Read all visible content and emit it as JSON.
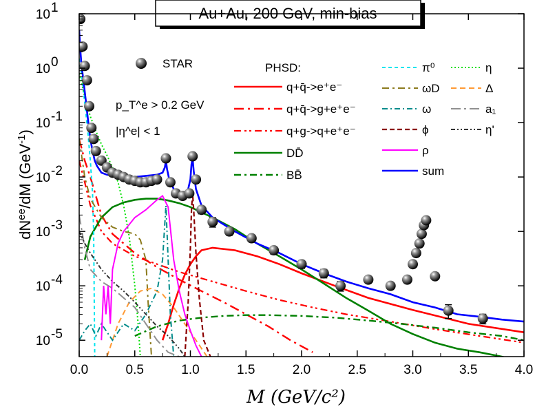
{
  "chart_data": {
    "type": "line",
    "title": "Au+Au, 200 GeV, min-bias",
    "xlabel": "M (GeV/c²)",
    "ylabel": "dN^ee/dM (GeV^-1)",
    "xlim": [
      0.0,
      4.0
    ],
    "ylim": [
      5e-06,
      10
    ],
    "yscale": "log",
    "x_ticks": [
      "0.0",
      "0.5",
      "1.0",
      "1.5",
      "2.0",
      "2.5",
      "3.0",
      "3.5",
      "4.0"
    ],
    "y_ticks": [
      "10^-5",
      "10^-4",
      "10^-3",
      "10^-2",
      "10^-1",
      "10^0",
      "10^1"
    ],
    "legend_title": "PHSD:",
    "annotations": [
      "p_T^e > 0.2 GeV",
      "|η^e| < 1"
    ],
    "data_series": {
      "name": "STAR",
      "x": [
        0.01,
        0.03,
        0.05,
        0.07,
        0.09,
        0.11,
        0.13,
        0.15,
        0.2,
        0.25,
        0.3,
        0.35,
        0.4,
        0.45,
        0.5,
        0.55,
        0.6,
        0.65,
        0.7,
        0.78,
        0.82,
        0.87,
        0.93,
        0.99,
        1.02,
        1.05,
        1.1,
        1.2,
        1.35,
        1.55,
        1.75,
        2.0,
        2.2,
        2.35,
        2.6,
        2.8,
        2.95,
        3.0,
        3.03,
        3.06,
        3.08,
        3.1,
        3.12,
        3.2,
        3.32,
        3.63
      ],
      "y": [
        8,
        2.5,
        1.1,
        0.6,
        0.2,
        0.08,
        0.05,
        0.03,
        0.02,
        0.015,
        0.012,
        0.011,
        0.01,
        0.009,
        0.0085,
        0.008,
        0.008,
        0.0085,
        0.009,
        0.022,
        0.008,
        0.005,
        0.0045,
        0.005,
        0.024,
        0.009,
        0.0025,
        0.0015,
        0.001,
        0.00075,
        0.00045,
        0.00025,
        0.00017,
        0.0001,
        0.00013,
        0.0001,
        0.00013,
        0.00025,
        0.0004,
        0.0006,
        0.0009,
        0.0013,
        0.0016,
        0.00015,
        3.5e-05,
        2.5e-05
      ],
      "errors": [
        0,
        0,
        0,
        0,
        0,
        0,
        0,
        0,
        0,
        0,
        0,
        0,
        0,
        0,
        0,
        0,
        0,
        0,
        0,
        0,
        0,
        0,
        0,
        0,
        0,
        0,
        0.0004,
        0.0003,
        0.00015,
        0.0001,
        7e-05,
        4e-05,
        3e-05,
        2e-05,
        0,
        0,
        0,
        0,
        0,
        0,
        0,
        0,
        0,
        0,
        1e-05,
        5e-06
      ]
    },
    "series": [
      {
        "name": "q+q̄->e⁺e⁻",
        "color": "#ff0000",
        "dash": "",
        "width": 2.6,
        "x": [
          0.75,
          0.8,
          0.85,
          0.9,
          0.95,
          1.0,
          1.05,
          1.1,
          1.2,
          1.4,
          1.6,
          1.8,
          2.0,
          2.3,
          2.6,
          3.0,
          3.5,
          4.0
        ],
        "y": [
          1e-05,
          2e-05,
          4.5e-05,
          9e-05,
          0.00016,
          0.00025,
          0.00035,
          0.00045,
          0.0005,
          0.00045,
          0.00035,
          0.00025,
          0.00017,
          0.0001,
          6e-05,
          3.6e-05,
          2e-05,
          1.4e-05
        ]
      },
      {
        "name": "q+q̄->g+e⁺e⁻",
        "color": "#ff0000",
        "dash": "14,6,3,6",
        "width": 2.4,
        "x": [
          0.0,
          0.05,
          0.1,
          0.2,
          0.3,
          0.5,
          0.7,
          0.9,
          1.1,
          1.3,
          1.5,
          1.7,
          1.9,
          2.1
        ],
        "y": [
          0.05,
          0.02,
          0.01,
          0.002,
          0.0009,
          0.0004,
          0.00022,
          0.00013,
          8e-05,
          5e-05,
          3e-05,
          1.8e-05,
          1e-05,
          6e-06
        ]
      },
      {
        "name": "q+g->q+e⁺e⁻",
        "color": "#ff0000",
        "dash": "10,5,3,4,3,5",
        "width": 2.2,
        "x": [
          0.0,
          0.05,
          0.1,
          0.2,
          0.3,
          0.5,
          0.7,
          0.9,
          1.2,
          1.5,
          1.8,
          2.1,
          2.4,
          2.8,
          3.2,
          3.6,
          4.0
        ],
        "y": [
          0.02,
          0.008,
          0.003,
          0.001,
          0.0006,
          0.00035,
          0.00025,
          0.00018,
          0.00012,
          8e-05,
          5.5e-05,
          4e-05,
          3e-05,
          2.2e-05,
          1.6e-05,
          1.2e-05,
          9e-06
        ]
      },
      {
        "name": "DD̄",
        "color": "#008000",
        "dash": "",
        "width": 2.6,
        "x": [
          0.05,
          0.1,
          0.2,
          0.3,
          0.4,
          0.5,
          0.6,
          0.7,
          0.8,
          0.9,
          1.0,
          1.2,
          1.4,
          1.6,
          1.8,
          2.0,
          2.2,
          2.4,
          2.6,
          2.8,
          3.0,
          3.2,
          3.4,
          3.6,
          3.8,
          4.0
        ],
        "y": [
          0.0003,
          0.0008,
          0.0018,
          0.0028,
          0.0034,
          0.0038,
          0.004,
          0.004,
          0.0037,
          0.0033,
          0.0028,
          0.0018,
          0.0011,
          0.0006,
          0.00035,
          0.0002,
          0.00011,
          6e-05,
          3.5e-05,
          2e-05,
          1.3e-05,
          9e-06,
          7e-06,
          6e-06,
          5e-06,
          4e-06
        ]
      },
      {
        "name": "BB̄",
        "color": "#008000",
        "dash": "10,5,3,5",
        "width": 2.4,
        "x": [
          0.5,
          0.7,
          0.9,
          1.1,
          1.3,
          1.5,
          1.7,
          2.0,
          2.3,
          2.6,
          2.9,
          3.2,
          3.5,
          3.8,
          4.0
        ],
        "y": [
          1.2e-05,
          1.8e-05,
          2.3e-05,
          2.6e-05,
          2.8e-05,
          2.9e-05,
          2.9e-05,
          2.8e-05,
          2.6e-05,
          2.3e-05,
          2e-05,
          1.7e-05,
          1.4e-05,
          1.2e-05,
          1e-05
        ]
      },
      {
        "name": "π⁰",
        "color": "#00e5ee",
        "dash": "5,4",
        "width": 2,
        "x": [
          0.0,
          0.02,
          0.04,
          0.06,
          0.08,
          0.1,
          0.12,
          0.13,
          0.14
        ],
        "y": [
          1.5,
          0.8,
          0.35,
          0.15,
          0.06,
          0.02,
          0.005,
          0.001,
          5e-06
        ]
      },
      {
        "name": "η",
        "color": "#00e000",
        "dash": "2,3",
        "width": 2,
        "x": [
          0.0,
          0.05,
          0.1,
          0.15,
          0.2,
          0.25,
          0.3,
          0.35,
          0.4,
          0.45,
          0.5,
          0.53,
          0.55
        ],
        "y": [
          0.8,
          0.3,
          0.13,
          0.07,
          0.04,
          0.025,
          0.015,
          0.008,
          0.003,
          0.0008,
          0.0001,
          2e-05,
          5e-06
        ]
      },
      {
        "name": "ωD",
        "color": "#8b7a1c",
        "dash": "10,5,3,5",
        "width": 2,
        "x": [
          0.0,
          0.05,
          0.1,
          0.2,
          0.3,
          0.4,
          0.5,
          0.55,
          0.6,
          0.62,
          0.65
        ],
        "y": [
          0.05,
          0.01,
          0.004,
          0.0018,
          0.0012,
          0.001,
          0.0009,
          0.0007,
          0.0003,
          5e-05,
          5e-06
        ]
      },
      {
        "name": "Δ",
        "color": "#ff9933",
        "dash": "8,5",
        "width": 2,
        "x": [
          0.25,
          0.35,
          0.45,
          0.55,
          0.65,
          0.75,
          0.85,
          0.95,
          1.05,
          1.15
        ],
        "y": [
          5e-06,
          2e-05,
          5e-05,
          8e-05,
          9e-05,
          7e-05,
          4e-05,
          2e-05,
          1e-05,
          5e-06
        ]
      },
      {
        "name": "ω",
        "color": "#008b8b",
        "dash": "8,4,2,4",
        "width": 2,
        "x": [
          0.0,
          0.05,
          0.1,
          0.15,
          0.2,
          0.3,
          0.4,
          0.5,
          0.6,
          0.7,
          0.75,
          0.78,
          0.8,
          0.82,
          0.85
        ],
        "y": [
          1e-05,
          1.5e-05,
          2e-05,
          1.2e-05,
          2e-05,
          1e-05,
          2e-05,
          1.5e-05,
          3e-05,
          8e-05,
          0.0003,
          0.003,
          0.0003,
          3e-05,
          5e-06
        ]
      },
      {
        "name": "a₁",
        "color": "#909090",
        "dash": "14,5,3,5",
        "width": 2,
        "x": [
          0.0,
          0.05,
          0.1,
          0.2,
          0.3,
          0.4,
          0.5,
          0.6,
          0.7,
          0.8,
          0.9
        ],
        "y": [
          0.002,
          0.0005,
          0.0002,
          0.00012,
          9e-05,
          6e-05,
          4e-05,
          2e-05,
          1e-05,
          6e-06,
          5e-06
        ]
      },
      {
        "name": "ϕ",
        "color": "#8b0000",
        "dash": "7,4",
        "width": 2.2,
        "x": [
          0.95,
          0.98,
          1.0,
          1.01,
          1.02,
          1.03,
          1.05,
          1.08,
          1.12,
          1.18
        ],
        "y": [
          5e-06,
          5e-05,
          0.0005,
          0.0025,
          0.005,
          0.0025,
          0.0004,
          6e-05,
          1e-05,
          5e-06
        ]
      },
      {
        "name": "η'",
        "color": "#333333",
        "dash": "6,3,2,3,2,3",
        "width": 2,
        "x": [
          0.0,
          0.05,
          0.1,
          0.2,
          0.3,
          0.4,
          0.5,
          0.6,
          0.7,
          0.8,
          0.9,
          0.95
        ],
        "y": [
          0.001,
          0.0006,
          0.0004,
          0.0002,
          0.00012,
          8e-05,
          5e-05,
          3e-05,
          1.8e-05,
          1.2e-05,
          7e-06,
          5e-06
        ]
      },
      {
        "name": "ρ",
        "color": "#ff00ff",
        "dash": "",
        "width": 2,
        "x": [
          0.2,
          0.22,
          0.24,
          0.26,
          0.28,
          0.3,
          0.35,
          0.4,
          0.5,
          0.6,
          0.7,
          0.75,
          0.8,
          0.85,
          0.9,
          0.95,
          1.0,
          1.05,
          1.1
        ],
        "y": [
          1e-05,
          0.0001,
          3e-05,
          0.0001,
          2e-05,
          0.0002,
          0.0006,
          0.001,
          0.0018,
          0.0025,
          0.0038,
          0.0045,
          0.0028,
          0.0003,
          8e-05,
          3e-05,
          1.5e-05,
          8e-06,
          5e-06
        ]
      },
      {
        "name": "sum",
        "color": "#0000ff",
        "dash": "",
        "width": 2.6,
        "x": [
          0.0,
          0.01,
          0.02,
          0.04,
          0.06,
          0.08,
          0.1,
          0.12,
          0.14,
          0.16,
          0.2,
          0.25,
          0.3,
          0.4,
          0.5,
          0.6,
          0.7,
          0.75,
          0.77,
          0.78,
          0.79,
          0.81,
          0.85,
          0.9,
          0.95,
          0.98,
          1.0,
          1.01,
          1.02,
          1.03,
          1.05,
          1.1,
          1.2,
          1.4,
          1.6,
          1.8,
          2.0,
          2.2,
          2.4,
          2.6,
          2.8,
          3.0,
          3.2,
          3.4,
          3.6,
          3.8,
          4.0
        ],
        "y": [
          5,
          2.2,
          1.2,
          0.55,
          0.25,
          0.11,
          0.05,
          0.03,
          0.02,
          0.016,
          0.012,
          0.011,
          0.0105,
          0.01,
          0.01,
          0.0105,
          0.011,
          0.012,
          0.015,
          0.02,
          0.014,
          0.009,
          0.006,
          0.005,
          0.005,
          0.006,
          0.009,
          0.017,
          0.022,
          0.013,
          0.006,
          0.003,
          0.0018,
          0.001,
          0.0006,
          0.0004,
          0.00025,
          0.00017,
          0.00012,
          9e-05,
          7e-05,
          5e-05,
          4e-05,
          3e-05,
          2.7e-05,
          2.4e-05,
          2.2e-05
        ]
      }
    ]
  },
  "legend": {
    "star_label": "STAR",
    "phsd_label": "PHSD:",
    "col2": [
      {
        "label": "q+q̄->e⁺e⁻",
        "series": 0
      },
      {
        "label": "q+q̄->g+e⁺e⁻",
        "series": 1
      },
      {
        "label": "q+g->q+e⁺e⁻",
        "series": 2
      },
      {
        "label": "DD̄",
        "series": 3
      },
      {
        "label": "BB̄",
        "series": 4
      }
    ],
    "col3": [
      {
        "label": "π⁰",
        "series": 5
      },
      {
        "label": "ωD",
        "series": 7
      },
      {
        "label": "ω",
        "series": 9
      },
      {
        "label": "ϕ",
        "series": 11
      },
      {
        "label": "ρ",
        "series": 13
      },
      {
        "label": "sum",
        "series": 14
      }
    ],
    "col4": [
      {
        "label": "η",
        "series": 6
      },
      {
        "label": "Δ",
        "series": 8
      },
      {
        "label": "a₁",
        "series": 10
      },
      {
        "label": "η'",
        "series": 12
      }
    ]
  }
}
